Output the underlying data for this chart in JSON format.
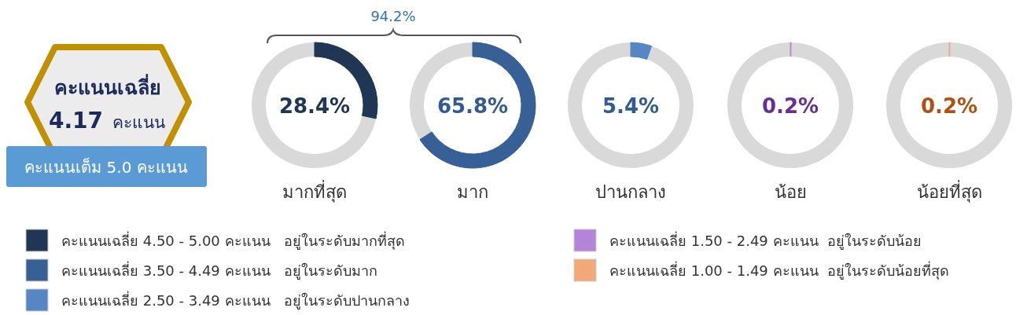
{
  "chart_data": [
    {
      "type": "other",
      "title": "คะแนนเฉลี่ย",
      "annotations": [
        "4.17",
        "คะแนน",
        "คะแนนเต็ม 5.0 คะแนน"
      ]
    },
    {
      "type": "donut",
      "title": "มากที่สุด",
      "categories": [
        null,
        null
      ],
      "values": [
        28.4,
        71.6
      ],
      "colors": [
        "#203655",
        "#d9d9d9"
      ],
      "annotations": [
        "28.4%",
        "94.2%"
      ]
    },
    {
      "type": "donut",
      "title": "มาก",
      "categories": [
        null,
        null
      ],
      "values": [
        65.8,
        34.2
      ],
      "colors": [
        "#366096",
        "#d9d9d9"
      ],
      "annotations": [
        "65.8%"
      ]
    },
    {
      "type": "donut",
      "title": "ปานกลาง",
      "categories": [
        null,
        null
      ],
      "values": [
        5.4,
        94.6
      ],
      "colors": [
        "#5687c4",
        "#d9d9d9"
      ],
      "annotations": [
        "5.4%"
      ]
    },
    {
      "type": "donut",
      "title": "น้อย",
      "categories": [
        null,
        null
      ],
      "values": [
        0.2,
        99.8
      ],
      "colors": [
        "#b584d8",
        "#d9d9d9"
      ],
      "annotations": [
        "0.2%"
      ]
    },
    {
      "type": "donut",
      "title": "น้อยที่สุด",
      "categories": [
        null,
        null
      ],
      "values": [
        0.2,
        99.8
      ],
      "colors": [
        "#f2a878",
        "#d9d9d9"
      ],
      "annotations": [
        "0.2%"
      ]
    },
    {
      "type": "other",
      "categories": [
        "คะแนนเฉลี่ย 4.50 - 5.00 คะแนน   อยู่ในระดับมากที่สุด",
        "คะแนนเฉลี่ย 3.50 - 4.49 คะแนน   อยู่ในระดับมาก",
        "คะแนนเฉลี่ย 2.50 - 3.49 คะแนน   อยู่ในระดับปานกลาง",
        "คะแนนเฉลี่ย 1.50 - 2.49 คะแนน  อยู่ในระดับน้อย",
        "คะแนนเฉลี่ย 1.00 - 1.49 คะแนน  อยู่ในระดับน้อยที่สุด"
      ],
      "colors": [
        "#203655",
        "#366096",
        "#5687c4",
        "#b584d8",
        "#f2a878"
      ]
    }
  ]
}
